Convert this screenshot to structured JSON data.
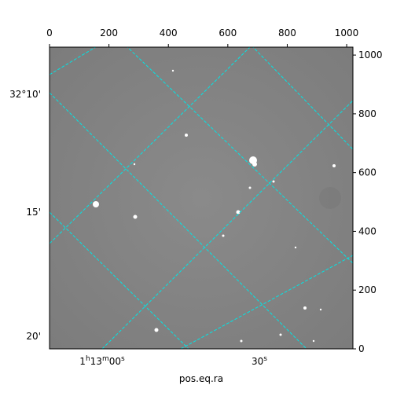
{
  "chart_data": {
    "type": "image",
    "x_label": "pos.eq.ra",
    "xlim": [
      0,
      1021
    ],
    "xticks": [
      0,
      200,
      400,
      600,
      800,
      1000
    ],
    "ylim": [
      0,
      1027
    ],
    "yticks": [
      0,
      200,
      400,
      600,
      800,
      1000
    ],
    "dec_labels": [
      "32°10'",
      "15'",
      "20'"
    ],
    "ra_labels": [
      "1h13m00s",
      "30s"
    ],
    "grid_color": "#00e5e5"
  }
}
